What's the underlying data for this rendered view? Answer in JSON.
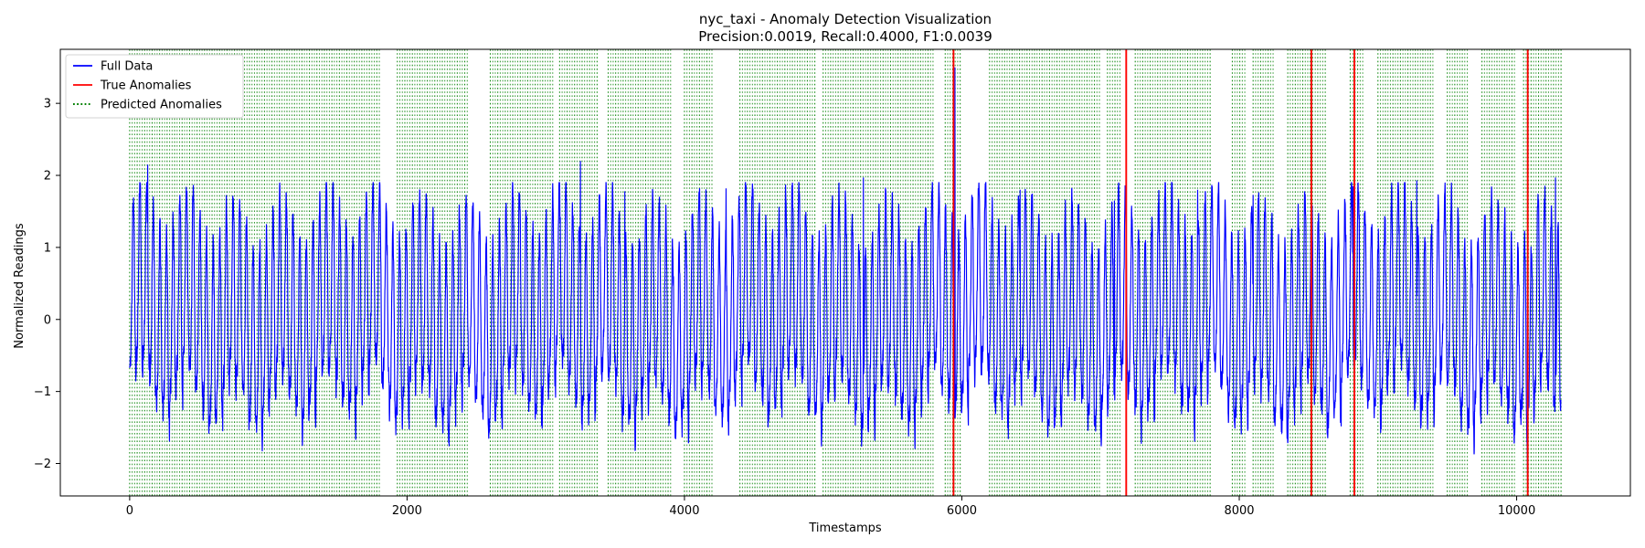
{
  "chart_data": {
    "type": "line",
    "title": "nyc_taxi - Anomaly Detection Visualization",
    "subtitle": "Precision:0.0019, Recall:0.4000, F1:0.0039",
    "xlabel": "Timestamps",
    "ylabel": "Normalized Readings",
    "xlim": [
      -500,
      10820
    ],
    "ylim": [
      -2.45,
      3.75
    ],
    "xticks": [
      0,
      2000,
      4000,
      6000,
      8000,
      10000
    ],
    "yticks": [
      -2,
      -1,
      0,
      1,
      2,
      3
    ],
    "grid": false,
    "legend_position": "top-left",
    "series_info": {
      "n_points": 10320,
      "period": 48,
      "colors": {
        "full_data": "#0000ff",
        "true_anomalies": "#ff0000",
        "predicted_anomalies": "#008000"
      }
    },
    "legend": [
      {
        "key": "full_data",
        "label": "Full Data",
        "style": "solid",
        "color": "#0000ff"
      },
      {
        "key": "true_anomalies",
        "label": "True Anomalies",
        "style": "solid",
        "color": "#ff0000"
      },
      {
        "key": "predicted_anomalies",
        "label": "Predicted Anomalies",
        "style": "dotted",
        "color": "#008000"
      }
    ],
    "true_anomalies": [
      5940,
      7185,
      8520,
      8830,
      10080
    ],
    "predicted_anomaly_ranges": [
      [
        0,
        1800
      ],
      [
        1930,
        2450
      ],
      [
        2600,
        3050
      ],
      [
        3100,
        3380
      ],
      [
        3450,
        3900
      ],
      [
        4000,
        4200
      ],
      [
        4400,
        4950
      ],
      [
        5000,
        5800
      ],
      [
        5880,
        6000
      ],
      [
        6200,
        7000
      ],
      [
        7050,
        7150
      ],
      [
        7250,
        7800
      ],
      [
        7950,
        8050
      ],
      [
        8100,
        8250
      ],
      [
        8350,
        8620
      ],
      [
        8800,
        8900
      ],
      [
        9000,
        9400
      ],
      [
        9500,
        9650
      ],
      [
        9750,
        10000
      ],
      [
        10050,
        10320
      ]
    ],
    "extreme_points": [
      {
        "x": 130,
        "y": 2.15
      },
      {
        "x": 1700,
        "y": 1.38
      },
      {
        "x": 3250,
        "y": 2.2
      },
      {
        "x": 3570,
        "y": 1.78
      },
      {
        "x": 4300,
        "y": 1.82
      },
      {
        "x": 5290,
        "y": 1.97
      },
      {
        "x": 5950,
        "y": 3.5
      },
      {
        "x": 6420,
        "y": 1.8
      },
      {
        "x": 7100,
        "y": 1.65
      },
      {
        "x": 7700,
        "y": 1.8
      },
      {
        "x": 8100,
        "y": 1.73
      },
      {
        "x": 8820,
        "y": 1.85
      },
      {
        "x": 9280,
        "y": 1.93
      },
      {
        "x": 10280,
        "y": 1.97
      },
      {
        "x": 10080,
        "y": -2.08
      }
    ]
  }
}
